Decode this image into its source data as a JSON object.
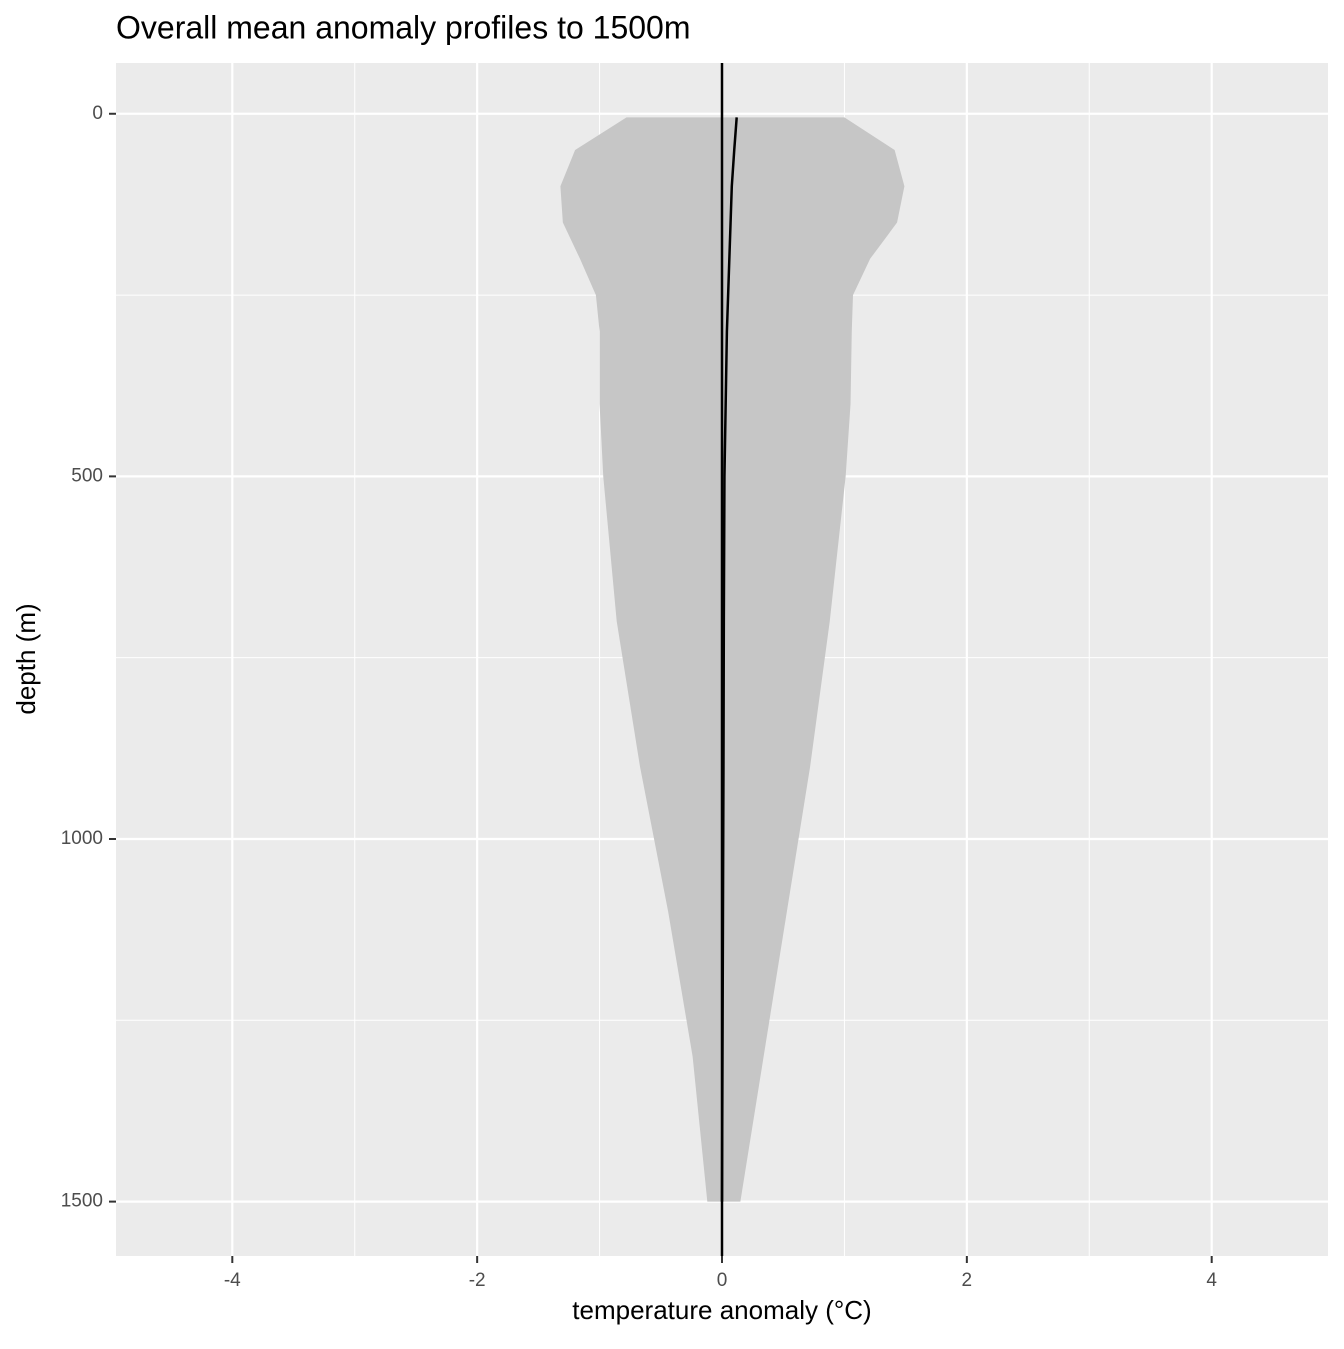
{
  "chart_data": {
    "type": "ribbon-profile",
    "title": "Overall mean anomaly profiles to 1500m",
    "x_label": "temperature anomaly (°C)",
    "y_label": "depth (m)",
    "xlim": [
      -4.95,
      4.95
    ],
    "xticks": [
      -4,
      -2,
      0,
      2,
      4
    ],
    "xminor": [
      -3,
      -1,
      1,
      3
    ],
    "ylim": [
      -70,
      1575
    ],
    "yticks": [
      0,
      500,
      1000,
      1500
    ],
    "yminor": [
      250,
      750,
      1250
    ],
    "y_reversed": true,
    "grid": true,
    "depth": [
      5,
      50,
      100,
      150,
      200,
      250,
      300,
      400,
      500,
      700,
      900,
      1100,
      1300,
      1500
    ],
    "ribbon": {
      "color": "#c6c6c6",
      "lower": [
        -0.78,
        -1.2,
        -1.32,
        -1.3,
        -1.16,
        -1.03,
        -1.0,
        -1.0,
        -0.97,
        -0.86,
        -0.67,
        -0.44,
        -0.24,
        -0.12
      ],
      "upper": [
        1.0,
        1.41,
        1.49,
        1.43,
        1.21,
        1.07,
        1.06,
        1.05,
        1.01,
        0.88,
        0.72,
        0.53,
        0.34,
        0.15
      ]
    },
    "mean": {
      "color": "#000000",
      "values": [
        0.12,
        0.1,
        0.08,
        0.07,
        0.06,
        0.05,
        0.04,
        0.03,
        0.02,
        0.015,
        0.012,
        0.008,
        0.004,
        0.0
      ]
    },
    "vline": 0
  }
}
